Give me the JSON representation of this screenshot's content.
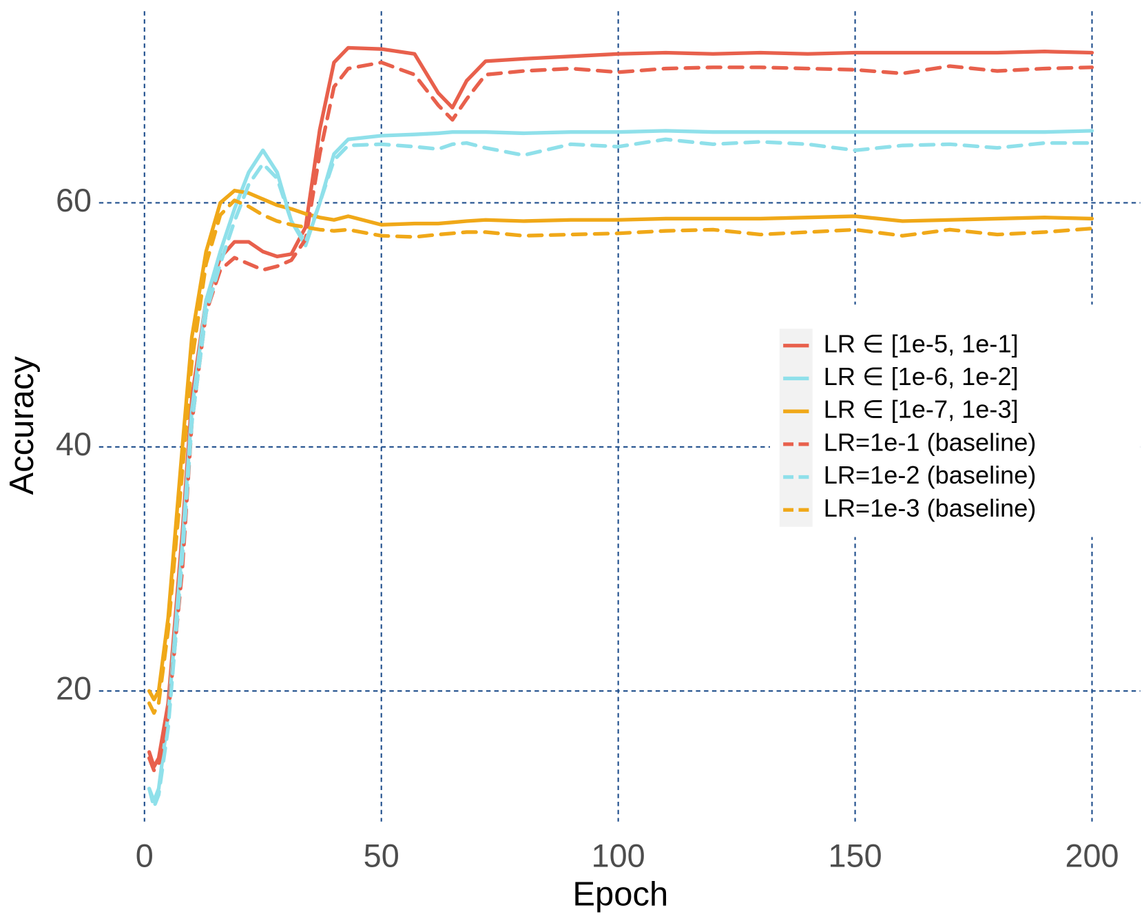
{
  "chart_data": {
    "type": "line",
    "x_label": "Epoch",
    "y_label": "Accuracy",
    "x": [
      1,
      2,
      3,
      5,
      8,
      10,
      13,
      16,
      19,
      22,
      25,
      28,
      31,
      34,
      37,
      40,
      43,
      50,
      57,
      62,
      65,
      68,
      72,
      80,
      90,
      100,
      110,
      120,
      130,
      140,
      150,
      160,
      170,
      180,
      190,
      200
    ],
    "series": [
      {
        "name": "LR ∈ [1e-5, 1e-1]",
        "color": "#e8604c",
        "linestyle": "solid",
        "values": [
          15,
          13.8,
          14.5,
          19,
          33,
          44,
          52,
          55.5,
          56.8,
          56.8,
          56,
          55.6,
          55.8,
          58,
          66,
          71.5,
          72.7,
          72.6,
          72.2,
          69,
          67.8,
          70,
          71.6,
          71.8,
          72,
          72.2,
          72.3,
          72.2,
          72.3,
          72.2,
          72.3,
          72.3,
          72.3,
          72.3,
          72.4,
          72.3
        ]
      },
      {
        "name": "LR ∈ [1e-6, 1e-2]",
        "color": "#8fe0ea",
        "linestyle": "solid",
        "values": [
          12,
          11,
          12,
          18,
          32,
          43,
          52,
          56,
          59.5,
          62.5,
          64.3,
          62.5,
          58.5,
          56.5,
          60,
          64,
          65.2,
          65.5,
          65.6,
          65.7,
          65.8,
          65.8,
          65.8,
          65.7,
          65.8,
          65.8,
          65.9,
          65.8,
          65.8,
          65.8,
          65.8,
          65.8,
          65.8,
          65.8,
          65.8,
          65.9
        ]
      },
      {
        "name": "LR ∈ [1e-7, 1e-3]",
        "color": "#f0a818",
        "linestyle": "solid",
        "values": [
          20,
          19.3,
          20,
          26,
          40,
          49,
          56,
          60,
          61,
          60.8,
          60.3,
          59.8,
          59.5,
          59.1,
          58.8,
          58.6,
          58.9,
          58.2,
          58.3,
          58.3,
          58.4,
          58.5,
          58.6,
          58.5,
          58.6,
          58.6,
          58.7,
          58.7,
          58.7,
          58.8,
          58.9,
          58.5,
          58.6,
          58.7,
          58.8,
          58.7
        ]
      },
      {
        "name": "LR=1e-1 (baseline)",
        "color": "#e8604c",
        "linestyle": "dashed",
        "values": [
          14.5,
          13.5,
          14,
          18,
          30,
          42,
          51,
          54.5,
          55.5,
          55,
          54.5,
          54.8,
          55.3,
          57,
          64,
          69.5,
          71,
          71.5,
          70.5,
          68,
          66.8,
          68.5,
          70.5,
          70.8,
          71,
          70.7,
          71,
          71.1,
          71.1,
          71,
          70.9,
          70.6,
          71.2,
          70.8,
          71,
          71.1
        ]
      },
      {
        "name": "LR=1e-2 (baseline)",
        "color": "#8fe0ea",
        "linestyle": "dashed",
        "values": [
          12,
          10.5,
          11.5,
          17,
          31,
          42,
          51,
          55,
          58.5,
          61.5,
          63.2,
          62,
          58.5,
          56.8,
          60,
          63.5,
          64.7,
          64.8,
          64.6,
          64.4,
          64.8,
          64.9,
          64.5,
          63.9,
          64.8,
          64.6,
          65.2,
          64.8,
          65,
          64.8,
          64.3,
          64.7,
          64.8,
          64.5,
          64.9,
          64.9
        ]
      },
      {
        "name": "LR=1e-3 (baseline)",
        "color": "#f0a818",
        "linestyle": "dashed",
        "values": [
          19,
          18.2,
          19,
          25,
          38,
          47,
          55,
          59,
          60.2,
          59.7,
          59,
          58.5,
          58.2,
          58,
          57.8,
          57.7,
          57.8,
          57.3,
          57.2,
          57.4,
          57.5,
          57.6,
          57.6,
          57.3,
          57.4,
          57.5,
          57.7,
          57.8,
          57.4,
          57.6,
          57.8,
          57.3,
          57.8,
          57.4,
          57.6,
          57.9
        ]
      }
    ],
    "xlim": [
      -9.6,
      210.2
    ],
    "xticks": [
      0,
      50,
      100,
      150,
      200
    ],
    "ylim": [
      9.3,
      75.7
    ],
    "yticks": [
      20,
      40,
      60
    ],
    "grid": true,
    "legend": "right"
  }
}
